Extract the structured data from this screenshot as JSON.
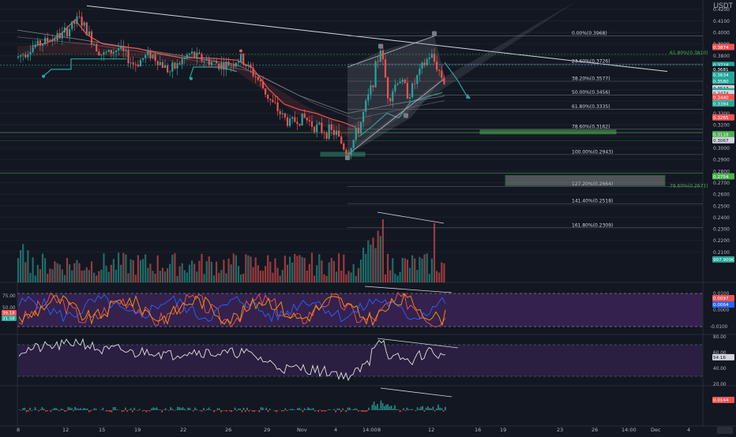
{
  "header": {
    "quote_currency": "USDT"
  },
  "chart_data": {
    "type": "candlestick",
    "price_axis": {
      "range": [
        0.185,
        0.428
      ],
      "ticks": [
        "0.4200",
        "0.4100",
        "0.4000",
        "0.3900",
        "0.3800",
        "0.3700",
        "0.3600",
        "0.3500",
        "0.3400",
        "0.3300",
        "0.3200",
        "0.3100",
        "0.3000",
        "0.2900",
        "0.2800",
        "0.2700",
        "0.2600",
        "0.2500",
        "0.2400",
        "0.2300",
        "0.2200",
        "0.2100"
      ],
      "tick_values": [
        0.42,
        0.41,
        0.4,
        0.39,
        0.38,
        0.37,
        0.36,
        0.35,
        0.34,
        0.33,
        0.32,
        0.31,
        0.3,
        0.29,
        0.28,
        0.27,
        0.26,
        0.25,
        0.24,
        0.23,
        0.22,
        0.21
      ]
    },
    "price_badges": [
      {
        "label": "0.3874",
        "value": 0.3874,
        "color": "#ef5350"
      },
      {
        "label": "0.3718",
        "value": 0.3718,
        "color": "#26a69a"
      },
      {
        "label": "0.3681",
        "value": 0.3681,
        "color": "#131722"
      },
      {
        "label": "0.3634",
        "value": 0.3634,
        "color": "#26a69a"
      },
      {
        "label": "0.3580",
        "value": 0.358,
        "color": "#26a69a"
      },
      {
        "label": "0.3517",
        "value": 0.3517,
        "color": "#d1d4dc"
      },
      {
        "label": "0.3490",
        "value": 0.349,
        "color": "#26a69a"
      },
      {
        "label": "0.3474",
        "value": 0.3474,
        "color": "#d1d4dc"
      },
      {
        "label": "0.3440",
        "value": 0.344,
        "color": "#ef5350"
      },
      {
        "label": "0.3387",
        "value": 0.3387,
        "color": "#d1d4dc"
      },
      {
        "label": "0.3384",
        "value": 0.3384,
        "color": "#26a69a"
      },
      {
        "label": "0.3265",
        "value": 0.3265,
        "color": "#ef5350"
      },
      {
        "label": "0.3118",
        "value": 0.3118,
        "color": "#4caf50"
      },
      {
        "label": "0.3067",
        "value": 0.3067,
        "color": "#d1d4dc"
      },
      {
        "label": "0.2754",
        "value": 0.2754,
        "color": "#4caf50"
      },
      {
        "label": "997.909K",
        "value": 0.2035,
        "color": "#26a69a"
      }
    ],
    "time_axis": {
      "labels": [
        "8",
        "12",
        "15",
        "19",
        "22",
        "26",
        "29",
        "Nov",
        "4",
        "14:00",
        "8",
        "12",
        "16",
        "19",
        "23",
        "26",
        "14:00",
        "Dec",
        "4",
        "8"
      ]
    },
    "fibonacci": [
      {
        "label": "0.00%(0.3968)",
        "value": 0.3968
      },
      {
        "label": "23.60%(0.3726)",
        "value": 0.3726
      },
      {
        "label": "38.20%(0.3577)",
        "value": 0.3577
      },
      {
        "label": "50.00%(0.3456)",
        "value": 0.3456
      },
      {
        "label": "61.80%(0.3335)",
        "value": 0.3335
      },
      {
        "label": "78.60%(0.3162)",
        "value": 0.3162
      },
      {
        "label": "100.00%(0.2943)",
        "value": 0.2943
      },
      {
        "label": "127.20%(0.2664)",
        "value": 0.2664
      },
      {
        "label": "141.40%(0.2518)",
        "value": 0.2518
      },
      {
        "label": "161.80%(0.2309)",
        "value": 0.2309
      }
    ],
    "zone_labels": [
      {
        "label": "61.80%(0.3810)",
        "value": 0.381
      },
      {
        "label": "78.60%(0.2671)",
        "value": 0.2671
      }
    ],
    "stoch_rsi": {
      "axis_labels": [
        "75.00",
        "50.00",
        "0.0000",
        "-0.0100"
      ],
      "axis_values": [
        0.01,
        0.0,
        -0.01
      ],
      "badges": [
        {
          "label": "0.0097",
          "color": "#ef5350"
        },
        {
          "label": "0.0064",
          "color": "#2962ff"
        }
      ],
      "left_badges": [
        {
          "label": "39.18",
          "color": "#ef5350"
        },
        {
          "label": "31.58",
          "color": "#26a69a"
        }
      ]
    },
    "rsi": {
      "axis_labels": [
        "80.00",
        "60.00",
        "54.16",
        "40.00",
        "20.00"
      ],
      "range": [
        20,
        80
      ],
      "current": 54.16
    },
    "macd_hist": {
      "badge": "0.0144"
    },
    "colors": {
      "bull": "#26a69a",
      "bear": "#ef5350",
      "background": "#131722",
      "fib_line": "#787b86",
      "green_zone": "#4caf50",
      "purple_band": "#4a2a6b"
    }
  }
}
